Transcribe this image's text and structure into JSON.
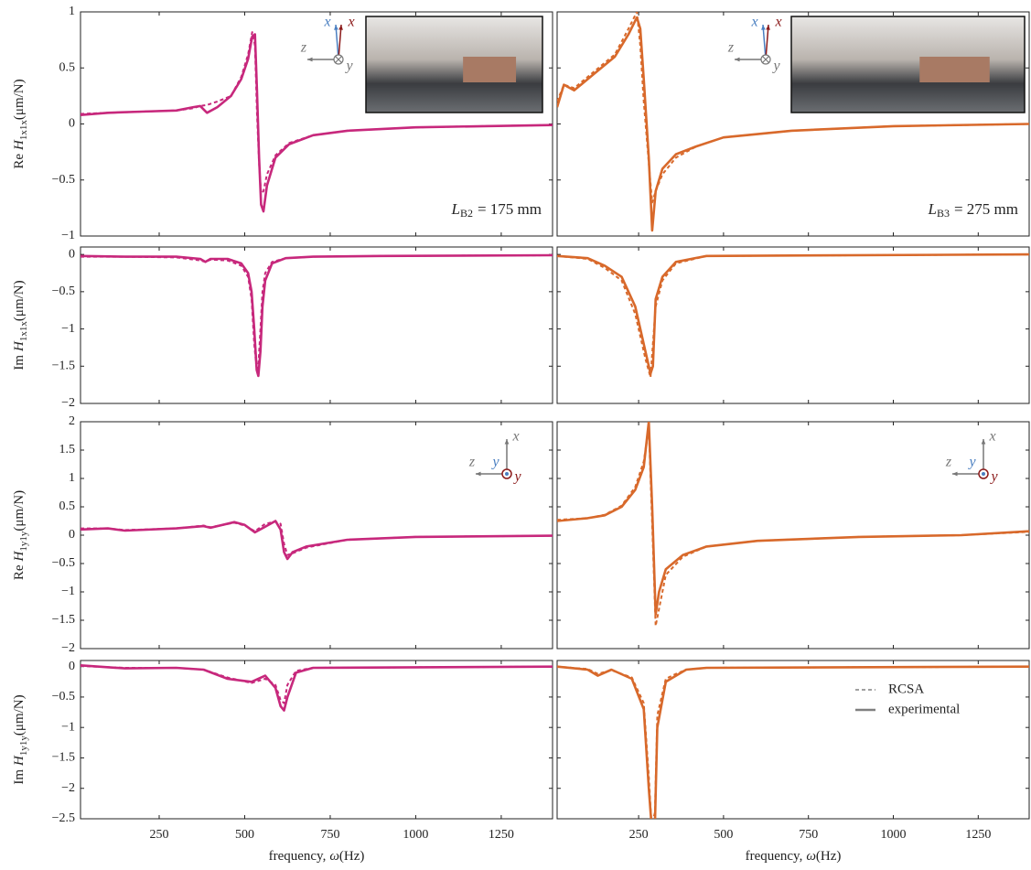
{
  "chart_data": [
    {
      "type": "line",
      "xlim": [
        20,
        1400
      ],
      "ylim": [
        -1,
        1
      ],
      "xticks": [
        250,
        500,
        750,
        1000,
        1250
      ],
      "yticks": [
        {
          "value": -1,
          "label": "−1"
        },
        {
          "value": -0.5,
          "label": "−0.5"
        },
        0,
        0.5,
        1
      ],
      "ytick_labels": true,
      "ylabel": {
        "prefix": "Re",
        "symbol": "H",
        "subscript": "1x1x",
        "unit": "(μm/N)"
      },
      "annotation": {
        "symbol": "L",
        "subscript": "B2",
        "text": "= 175 mm"
      },
      "axis_icon": {
        "labels": [
          "x",
          "x",
          "z",
          "y"
        ],
        "colors": [
          "#4a7fc1",
          "#8b1a1a",
          "#777777",
          "#777777"
        ]
      },
      "x": [
        20,
        100,
        200,
        300,
        350,
        370,
        390,
        420,
        460,
        490,
        510,
        522,
        530,
        536,
        542,
        548,
        555,
        565,
        590,
        630,
        700,
        800,
        1000,
        1200,
        1400
      ],
      "series": [
        {
          "color": "#c7287c",
          "dash": true,
          "values": [
            0.09,
            0.1,
            0.11,
            0.12,
            0.14,
            0.16,
            0.17,
            0.2,
            0.25,
            0.42,
            0.62,
            0.82,
            0.7,
            0.1,
            -0.35,
            -0.62,
            -0.6,
            -0.45,
            -0.28,
            -0.17,
            -0.1,
            -0.06,
            -0.03,
            -0.02,
            -0.01
          ]
        },
        {
          "color": "#c7287c",
          "dash": false,
          "values": [
            0.08,
            0.1,
            0.11,
            0.12,
            0.15,
            0.16,
            0.1,
            0.15,
            0.25,
            0.4,
            0.58,
            0.78,
            0.8,
            0.3,
            -0.3,
            -0.72,
            -0.78,
            -0.55,
            -0.3,
            -0.18,
            -0.1,
            -0.06,
            -0.03,
            -0.02,
            -0.01
          ]
        }
      ]
    },
    {
      "type": "line",
      "xlim": [
        20,
        1400
      ],
      "ylim": [
        -2,
        0.1
      ],
      "xticks": [
        250,
        500,
        750,
        1000,
        1250
      ],
      "yticks": [
        {
          "value": -2,
          "label": "−2"
        },
        {
          "value": -1.5,
          "label": "−1.5"
        },
        {
          "value": -1,
          "label": "−1"
        },
        {
          "value": -0.5,
          "label": "−0.5"
        },
        0
      ],
      "ytick_labels": true,
      "ylabel": {
        "prefix": "Im",
        "symbol": "H",
        "subscript": "1x1x",
        "unit": "(μm/N)"
      },
      "x": [
        20,
        150,
        300,
        370,
        385,
        400,
        450,
        490,
        510,
        520,
        528,
        535,
        540,
        546,
        552,
        560,
        580,
        620,
        700,
        900,
        1400
      ],
      "series": [
        {
          "color": "#c7287c",
          "dash": true,
          "values": [
            -0.03,
            -0.03,
            -0.04,
            -0.08,
            -0.1,
            -0.07,
            -0.08,
            -0.15,
            -0.3,
            -0.6,
            -1.2,
            -1.55,
            -1.5,
            -1.0,
            -0.5,
            -0.25,
            -0.1,
            -0.05,
            -0.03,
            -0.02,
            -0.01
          ]
        },
        {
          "color": "#c7287c",
          "dash": false,
          "values": [
            -0.02,
            -0.03,
            -0.03,
            -0.06,
            -0.1,
            -0.06,
            -0.06,
            -0.12,
            -0.25,
            -0.5,
            -1.0,
            -1.55,
            -1.63,
            -1.3,
            -0.7,
            -0.35,
            -0.12,
            -0.05,
            -0.03,
            -0.02,
            -0.01
          ]
        }
      ]
    },
    {
      "type": "line",
      "xlim": [
        20,
        1400
      ],
      "ylim": [
        -2,
        2
      ],
      "xticks": [
        250,
        500,
        750,
        1000,
        1250
      ],
      "yticks": [
        {
          "value": -2,
          "label": "−2"
        },
        {
          "value": -1.5,
          "label": "−1.5"
        },
        {
          "value": -1,
          "label": "−1"
        },
        {
          "value": -0.5,
          "label": "−0.5"
        },
        0,
        0.5,
        1,
        1.5,
        2
      ],
      "ytick_labels": true,
      "ylabel": {
        "prefix": "Re",
        "symbol": "H",
        "subscript": "1y1y",
        "unit": "(μm/N)"
      },
      "axis_icon": {
        "labels": [
          "x",
          "z",
          "y",
          "y"
        ],
        "colors": [
          "#777777",
          "#777777",
          "#4a7fc1",
          "#8b1a1a"
        ]
      },
      "x": [
        20,
        100,
        150,
        300,
        380,
        400,
        470,
        500,
        530,
        560,
        590,
        605,
        615,
        625,
        640,
        680,
        800,
        1000,
        1400
      ],
      "series": [
        {
          "color": "#c7287c",
          "dash": true,
          "values": [
            0.12,
            0.12,
            0.09,
            0.12,
            0.17,
            0.14,
            0.22,
            0.17,
            0.07,
            0.2,
            0.24,
            0.2,
            -0.15,
            -0.35,
            -0.32,
            -0.22,
            -0.08,
            -0.03,
            -0.01
          ]
        },
        {
          "color": "#c7287c",
          "dash": false,
          "values": [
            0.1,
            0.12,
            0.08,
            0.12,
            0.16,
            0.13,
            0.23,
            0.18,
            0.05,
            0.15,
            0.25,
            0.1,
            -0.3,
            -0.42,
            -0.3,
            -0.2,
            -0.08,
            -0.03,
            -0.01
          ]
        }
      ]
    },
    {
      "type": "line",
      "xlim": [
        20,
        1400
      ],
      "ylim": [
        -2.5,
        0.1
      ],
      "xticks": [
        250,
        500,
        750,
        1000,
        1250
      ],
      "xtick_labels": true,
      "yticks": [
        {
          "value": -2.5,
          "label": "−2.5"
        },
        {
          "value": -2,
          "label": "−2"
        },
        {
          "value": -1.5,
          "label": "−1.5"
        },
        {
          "value": -1,
          "label": "−1"
        },
        {
          "value": -0.5,
          "label": "−0.5"
        },
        0
      ],
      "ytick_labels": true,
      "ylabel": {
        "prefix": "Im",
        "symbol": "H",
        "subscript": "1y1y",
        "unit": "(μm/N)"
      },
      "xlabel": {
        "text": "frequency,",
        "symbol": "ω",
        "unit": "(Hz)"
      },
      "x": [
        20,
        150,
        300,
        380,
        450,
        520,
        560,
        590,
        605,
        615,
        625,
        650,
        700,
        1400
      ],
      "series": [
        {
          "color": "#c7287c",
          "dash": true,
          "values": [
            0.01,
            -0.02,
            -0.02,
            -0.05,
            -0.18,
            -0.27,
            -0.2,
            -0.3,
            -0.55,
            -0.6,
            -0.3,
            -0.07,
            -0.02,
            0
          ]
        },
        {
          "color": "#c7287c",
          "dash": false,
          "values": [
            0.02,
            -0.03,
            -0.02,
            -0.05,
            -0.2,
            -0.25,
            -0.15,
            -0.35,
            -0.65,
            -0.72,
            -0.5,
            -0.1,
            -0.02,
            0
          ]
        }
      ]
    },
    {
      "type": "line",
      "xlim": [
        10,
        1400
      ],
      "ylim": [
        -1,
        1
      ],
      "xticks": [
        250,
        500,
        750,
        1000,
        1250
      ],
      "yticks": [
        -1,
        -0.5,
        0,
        0.5,
        1
      ],
      "annotation": {
        "symbol": "L",
        "subscript": "B3",
        "text": "= 275 mm"
      },
      "axis_icon": {
        "labels": [
          "x",
          "x",
          "z",
          "y"
        ],
        "colors": [
          "#4a7fc1",
          "#8b1a1a",
          "#777777",
          "#777777"
        ]
      },
      "x": [
        10,
        30,
        60,
        120,
        180,
        220,
        245,
        255,
        265,
        280,
        290,
        300,
        320,
        360,
        420,
        500,
        700,
        1000,
        1400
      ],
      "series": [
        {
          "color": "#d8692b",
          "dash": true,
          "values": [
            0.2,
            0.35,
            0.32,
            0.47,
            0.62,
            0.85,
            1.0,
            0.7,
            0.2,
            -0.35,
            -0.7,
            -0.6,
            -0.45,
            -0.3,
            -0.2,
            -0.12,
            -0.06,
            -0.02,
            0
          ]
        },
        {
          "color": "#d8692b",
          "dash": false,
          "values": [
            0.15,
            0.35,
            0.3,
            0.45,
            0.6,
            0.8,
            0.95,
            0.85,
            0.4,
            -0.3,
            -0.95,
            -0.6,
            -0.4,
            -0.27,
            -0.2,
            -0.12,
            -0.06,
            -0.02,
            0
          ]
        }
      ]
    },
    {
      "type": "line",
      "xlim": [
        10,
        1400
      ],
      "ylim": [
        -2,
        0.1
      ],
      "xticks": [
        250,
        500,
        750,
        1000,
        1250
      ],
      "yticks": [
        -2,
        -1.5,
        -1,
        -0.5,
        0
      ],
      "x": [
        10,
        100,
        150,
        200,
        240,
        270,
        285,
        292,
        300,
        320,
        360,
        450,
        1400
      ],
      "series": [
        {
          "color": "#d8692b",
          "dash": true,
          "values": [
            -0.02,
            -0.06,
            -0.18,
            -0.35,
            -0.8,
            -1.4,
            -1.65,
            -1.2,
            -0.7,
            -0.35,
            -0.12,
            -0.02,
            0
          ]
        },
        {
          "color": "#d8692b",
          "dash": false,
          "values": [
            -0.02,
            -0.05,
            -0.15,
            -0.3,
            -0.7,
            -1.3,
            -1.6,
            -1.5,
            -0.6,
            -0.3,
            -0.1,
            -0.02,
            0
          ]
        }
      ]
    },
    {
      "type": "line",
      "xlim": [
        10,
        1400
      ],
      "ylim": [
        -2,
        2
      ],
      "xticks": [
        250,
        500,
        750,
        1000,
        1250
      ],
      "yticks": [
        -2,
        -1.5,
        -1,
        -0.5,
        0,
        0.5,
        1,
        1.5,
        2
      ],
      "axis_icon": {
        "labels": [
          "x",
          "z",
          "y",
          "y"
        ],
        "colors": [
          "#777777",
          "#777777",
          "#4a7fc1",
          "#8b1a1a"
        ]
      },
      "x": [
        10,
        100,
        150,
        200,
        240,
        265,
        280,
        290,
        300,
        310,
        330,
        380,
        450,
        600,
        900,
        1200,
        1400
      ],
      "series": [
        {
          "color": "#d8692b",
          "dash": true,
          "values": [
            0.27,
            0.3,
            0.36,
            0.52,
            0.85,
            1.3,
            1.9,
            0.2,
            -1.6,
            -1.3,
            -0.7,
            -0.38,
            -0.2,
            -0.1,
            -0.03,
            0,
            0.06
          ]
        },
        {
          "color": "#d8692b",
          "dash": false,
          "values": [
            0.25,
            0.3,
            0.35,
            0.5,
            0.8,
            1.2,
            2.0,
            0.5,
            -1.4,
            -1.0,
            -0.6,
            -0.35,
            -0.2,
            -0.1,
            -0.03,
            0,
            0.07
          ]
        }
      ]
    },
    {
      "type": "line",
      "xlim": [
        10,
        1400
      ],
      "ylim": [
        -2.5,
        0.1
      ],
      "xticks": [
        250,
        500,
        750,
        1000,
        1250
      ],
      "xtick_labels": true,
      "yticks": [
        -2.5,
        -2,
        -1.5,
        -1,
        -0.5,
        0
      ],
      "xlabel": {
        "text": "frequency,",
        "symbol": "ω",
        "unit": "(Hz)"
      },
      "legend": "upper right",
      "legend_color": "#808080",
      "x": [
        10,
        100,
        130,
        170,
        230,
        265,
        280,
        288,
        298,
        305,
        330,
        360,
        390,
        450,
        1400
      ],
      "series": [
        {
          "name": "RCSA",
          "color": "#d8692b",
          "dash": true,
          "values": [
            0,
            -0.04,
            -0.12,
            -0.06,
            -0.18,
            -0.6,
            -1.8,
            -2.6,
            -2.4,
            -0.8,
            -0.2,
            -0.12,
            -0.05,
            -0.02,
            0
          ]
        },
        {
          "name": "experimental",
          "color": "#d8692b",
          "dash": false,
          "values": [
            0,
            -0.05,
            -0.15,
            -0.05,
            -0.2,
            -0.7,
            -2.0,
            -2.6,
            -2.6,
            -1.0,
            -0.25,
            -0.15,
            -0.05,
            -0.02,
            0
          ]
        }
      ]
    }
  ]
}
